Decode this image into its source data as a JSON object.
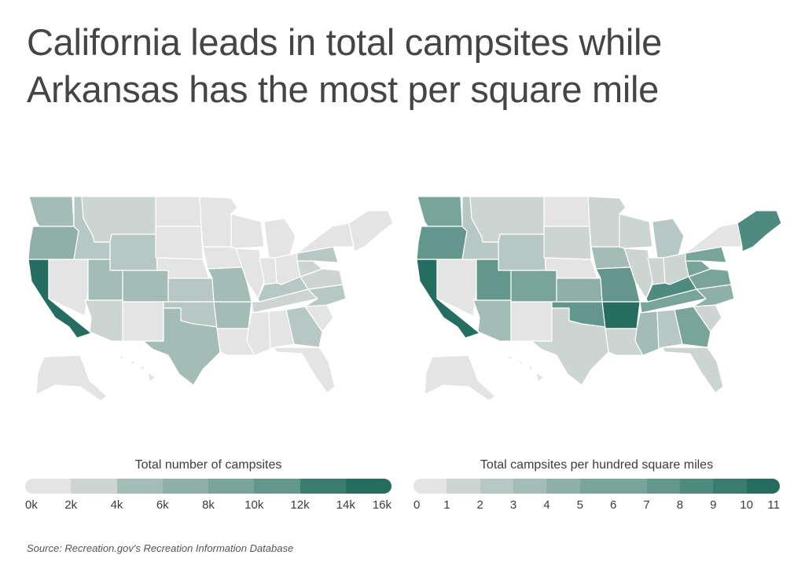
{
  "title_line1": "California leads in total campsites while",
  "title_line2": "Arkansas has the most per square mile",
  "source": "Source:  Recreation.gov's Recreation Information Database",
  "color_scale": [
    "#e4e4e4",
    "#cdd5d3",
    "#b7c8c4",
    "#a3bcb6",
    "#8fb0a8",
    "#79a49a",
    "#63978c",
    "#4e8a7e",
    "#3a7d70",
    "#256d60"
  ],
  "border_color": "#ffffff",
  "maps": [
    {
      "legend_title": "Total number of campsites",
      "legend_ticks": [
        "0k",
        "2k",
        "4k",
        "6k",
        "8k",
        "10k",
        "12k",
        "14k",
        "16k"
      ],
      "state_levels": {
        "WA": 3,
        "OR": 4,
        "CA": 9,
        "NV": 0,
        "ID": 2,
        "MT": 1,
        "WY": 2,
        "UT": 3,
        "CO": 3,
        "AZ": 1,
        "NM": 0,
        "ND": 0,
        "SD": 0,
        "NE": 0,
        "KS": 2,
        "OK": 2,
        "TX": 3,
        "MN": 0,
        "IA": 0,
        "MO": 3,
        "AR": 3,
        "LA": 0,
        "WI": 0,
        "IL": 0,
        "MI": 0,
        "IN": 0,
        "OH": 0,
        "KY": 2,
        "TN": 1,
        "MS": 0,
        "AL": 0,
        "GA": 2,
        "FL": 0,
        "SC": 0,
        "NC": 2,
        "VA": 1,
        "WV": 1,
        "PA": 2,
        "NY": 0,
        "NE_REGION": 0,
        "AK": 0,
        "HI": 0
      }
    },
    {
      "legend_title": "Total campsites per hundred square miles",
      "legend_ticks": [
        "0",
        "1",
        "2",
        "3",
        "4",
        "5",
        "6",
        "7",
        "8",
        "9",
        "10",
        "11"
      ],
      "state_levels": {
        "WA": 5,
        "OR": 6,
        "CA": 9,
        "NV": 0,
        "ID": 2,
        "MT": 1,
        "WY": 2,
        "UT": 6,
        "CO": 5,
        "AZ": 3,
        "NM": 0,
        "ND": 0,
        "SD": 1,
        "NE": 0,
        "KS": 4,
        "OK": 6,
        "TX": 1,
        "MN": 1,
        "IA": 3,
        "MO": 6,
        "AR": 9,
        "LA": 1,
        "WI": 1,
        "IL": 1,
        "MI": 2,
        "IN": 1,
        "OH": 1,
        "KY": 7,
        "TN": 5,
        "MS": 3,
        "AL": 2,
        "GA": 5,
        "FL": 1,
        "SC": 1,
        "NC": 4,
        "VA": 5,
        "WV": 5,
        "PA": 5,
        "NY": 0,
        "NE_REGION": 7,
        "AK": 0,
        "HI": 0
      }
    }
  ]
}
